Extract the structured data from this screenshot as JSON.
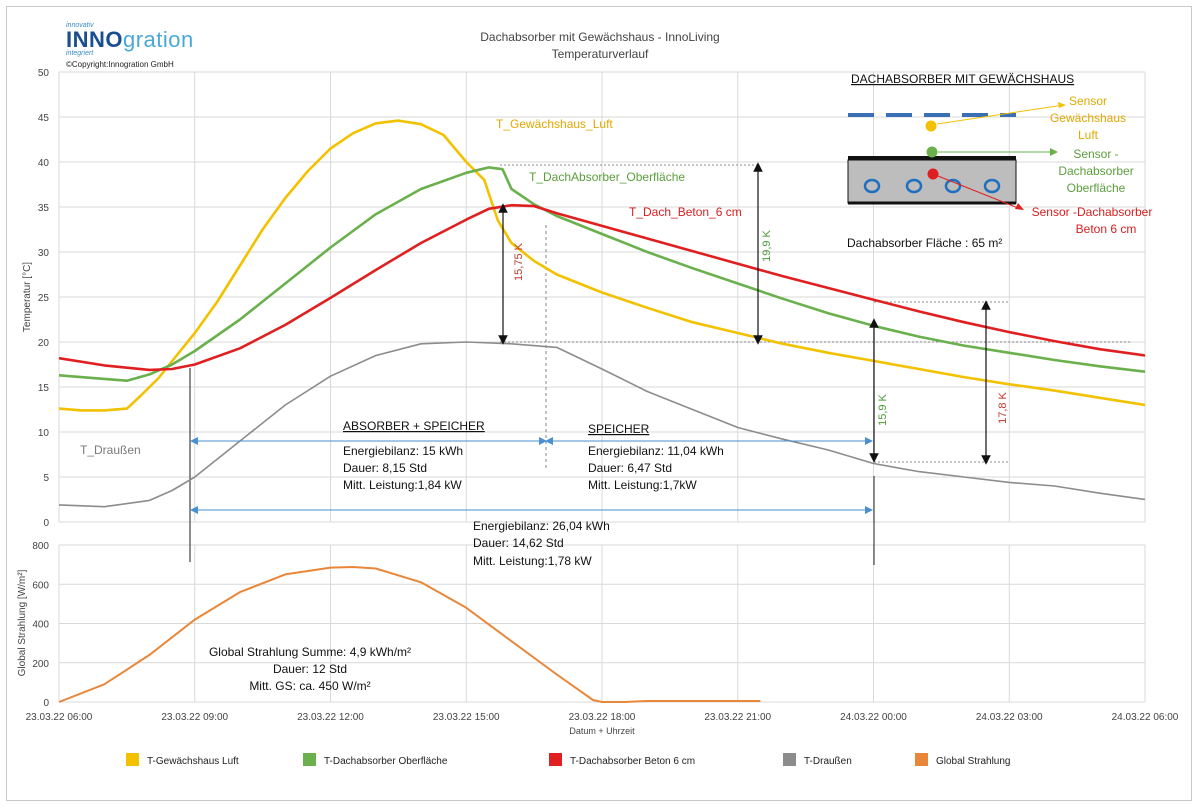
{
  "logo": {
    "top_line": "innovativ",
    "word_part1": "INNO",
    "word_part2": "gration",
    "bottom_line": "integriert",
    "copyright": "©Copyright:Innogration GmbH"
  },
  "chart_data": [
    {
      "type": "line",
      "title": "Dachabsorber mit Gewächshaus - InnoLiving",
      "subtitle": "Temperaturverlauf",
      "ylabel": "Temperatur [°C]",
      "xlabel": "",
      "ylim": [
        0,
        50
      ],
      "yticks": [
        0,
        5,
        10,
        15,
        20,
        25,
        30,
        35,
        40,
        45,
        50
      ],
      "grid": true,
      "x_unit": "hours since 23.03.22 06:00",
      "series": [
        {
          "name": "T-Gewächshaus Luft",
          "color": "#f2c100",
          "x": [
            0,
            0.5,
            1,
            1.5,
            1.8,
            2.2,
            2.6,
            3,
            3.5,
            4,
            4.5,
            5,
            5.5,
            6,
            6.5,
            7,
            7.5,
            8,
            8.5,
            9,
            9.4,
            9.7,
            10,
            10.5,
            11,
            12,
            13,
            14,
            15,
            16,
            17,
            18,
            19,
            20,
            21,
            22,
            23,
            24
          ],
          "y": [
            12.6,
            12.4,
            12.4,
            12.6,
            14,
            16,
            18.5,
            21,
            24.5,
            28.5,
            32.5,
            36,
            39,
            41.5,
            43.2,
            44.3,
            44.6,
            44.2,
            43,
            40,
            38,
            33.5,
            31,
            29,
            27.5,
            25.5,
            23.8,
            22.2,
            21,
            19.8,
            18.8,
            17.9,
            17,
            16.1,
            15.3,
            14.6,
            13.8,
            13
          ]
        },
        {
          "name": "T-Dachabsorber Oberfläche",
          "color": "#6ab04c",
          "x": [
            0,
            1,
            1.5,
            2,
            2.5,
            3,
            4,
            5,
            6,
            7,
            8,
            9,
            9.5,
            9.8,
            10,
            10.5,
            11,
            12,
            13,
            14,
            15,
            16,
            17,
            18,
            19,
            20,
            21,
            22,
            23,
            24
          ],
          "y": [
            16.3,
            15.9,
            15.7,
            16.4,
            17.5,
            19,
            22.5,
            26.5,
            30.5,
            34.2,
            37,
            38.8,
            39.4,
            39.2,
            37,
            35.3,
            34,
            32,
            30,
            28.2,
            26.5,
            24.8,
            23.2,
            21.8,
            20.6,
            19.6,
            18.8,
            18,
            17.3,
            16.7
          ]
        },
        {
          "name": "T-Dachabsorber Beton 6 cm",
          "color": "#e02020",
          "x": [
            0,
            1,
            2,
            2.5,
            3,
            4,
            5,
            6,
            7,
            8,
            9,
            9.5,
            10,
            10.5,
            11,
            12,
            13,
            14,
            15,
            16,
            17,
            18,
            19,
            20,
            21,
            22,
            23,
            24
          ],
          "y": [
            18.2,
            17.4,
            16.9,
            17.0,
            17.5,
            19.3,
            21.9,
            24.9,
            28,
            31,
            33.6,
            34.8,
            35.2,
            35.1,
            34.3,
            32.9,
            31.5,
            30.1,
            28.7,
            27.3,
            26,
            24.7,
            23.4,
            22.2,
            21.1,
            20.1,
            19.2,
            18.5
          ]
        },
        {
          "name": "T-Draußen",
          "color": "#8c8c8c",
          "x": [
            0,
            1,
            2,
            2.5,
            3,
            4,
            5,
            6,
            7,
            8,
            9,
            10,
            11,
            12,
            13,
            14,
            15,
            16,
            17,
            18,
            19,
            20,
            21,
            22,
            23,
            24
          ],
          "y": [
            1.9,
            1.7,
            2.4,
            3.5,
            5,
            9,
            13,
            16.2,
            18.5,
            19.8,
            20,
            19.8,
            19.4,
            17,
            14.5,
            12.5,
            10.5,
            9.2,
            8,
            6.5,
            5.6,
            5,
            4.4,
            4,
            3.2,
            2.5
          ]
        }
      ],
      "series_labels": {
        "gewaechshaus": "T_Gewächshaus_Luft",
        "oberflaeche": "T_DachAbsorber_Oberfläche",
        "beton": "T_Dach_Beton_6 cm",
        "draussen": "T_Draußen"
      },
      "annotations": {
        "delta1": "15,75 K",
        "delta2": "19,9 K",
        "delta3": "15,9 K",
        "delta4": "17,8 K",
        "box1_title": "ABSORBER  + SPEICHER",
        "box1_lines": [
          "Energiebilanz: 15 kWh",
          "Dauer: 8,15 Std",
          "Mitt. Leistung:1,84 kW"
        ],
        "box2_title": "SPEICHER",
        "box2_lines": [
          "Energiebilanz: 11,04 kWh",
          "Dauer: 6,47 Std",
          "Mitt. Leistung:1,7kW"
        ],
        "total_lines": [
          "Energiebilanz: 26,04 kWh",
          "Dauer: 14,62 Std",
          "Mitt. Leistung:1,78 kW"
        ]
      },
      "inset": {
        "title": "DACHABSORBER MIT GEWÄCHSHAUS",
        "sensor1": [
          "Sensor",
          "Gewächshaus",
          "Luft"
        ],
        "sensor2": [
          "Sensor -",
          "Dachabsorber",
          "Oberfläche"
        ],
        "sensor3": [
          "Sensor -Dachabsorber",
          "Beton 6 cm"
        ],
        "area_label": "Dachabsorber Fläche : 65 m²"
      }
    },
    {
      "type": "area",
      "title": "",
      "ylabel": "Global Strahlung [W/m²]",
      "xlabel": "Datum + Uhrzeit",
      "ylim": [
        0,
        800
      ],
      "yticks": [
        0,
        200,
        400,
        600,
        800
      ],
      "xtick_labels": [
        "23.03.22 06:00",
        "23.03.22 09:00",
        "23.03.22 12:00",
        "23.03.22 15:00",
        "23.03.22 18:00",
        "23.03.22 21:00",
        "24.03.22 00:00",
        "24.03.22 03:00",
        "24.03.22 06:00"
      ],
      "series": [
        {
          "name": "Global Strahlung",
          "color": "#e8873a",
          "x": [
            0,
            1,
            2,
            3,
            4,
            5,
            6,
            6.5,
            7,
            8,
            9,
            10,
            11,
            11.8,
            12,
            12.5,
            13,
            14,
            15,
            15.5
          ],
          "y": [
            0,
            90,
            240,
            420,
            560,
            650,
            685,
            688,
            680,
            610,
            480,
            310,
            140,
            10,
            0,
            0,
            5,
            5,
            5,
            5
          ]
        }
      ],
      "annotation_lines": [
        "Global Strahlung Summe: 4,9 kWh/m²",
        "Dauer: 12 Std",
        "Mitt. GS: ca. 450 W/m²"
      ]
    }
  ],
  "legend": [
    {
      "label": "T-Gewächshaus Luft",
      "color": "#f2c100"
    },
    {
      "label": "T-Dachabsorber Oberfläche",
      "color": "#6ab04c"
    },
    {
      "label": "T-Dachabsorber Beton 6 cm",
      "color": "#e02020"
    },
    {
      "label": "T-Draußen",
      "color": "#8c8c8c"
    },
    {
      "label": "Global Strahlung",
      "color": "#e8873a"
    }
  ]
}
